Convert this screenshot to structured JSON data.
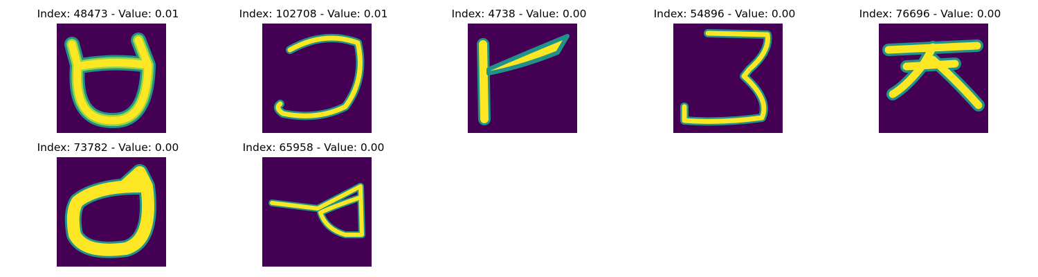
{
  "colors": {
    "background": "#440154",
    "stroke_core": "#fde725",
    "stroke_mid": "#90d743",
    "stroke_edge": "#21918c"
  },
  "panels": [
    {
      "title": "Index: 48473 - Value: 0.01",
      "index": 48473,
      "value": 0.01
    },
    {
      "title": "Index: 102708 - Value: 0.01",
      "index": 102708,
      "value": 0.01
    },
    {
      "title": "Index: 4738 - Value: 0.00",
      "index": 4738,
      "value": 0.0
    },
    {
      "title": "Index: 54896 - Value: 0.00",
      "index": 54896,
      "value": 0.0
    },
    {
      "title": "Index: 76696 - Value: 0.00",
      "index": 76696,
      "value": 0.0
    },
    {
      "title": "Index: 73782 - Value: 0.00",
      "index": 73782,
      "value": 0.0
    },
    {
      "title": "Index: 65958 - Value: 0.00",
      "index": 65958,
      "value": 0.0
    }
  ]
}
